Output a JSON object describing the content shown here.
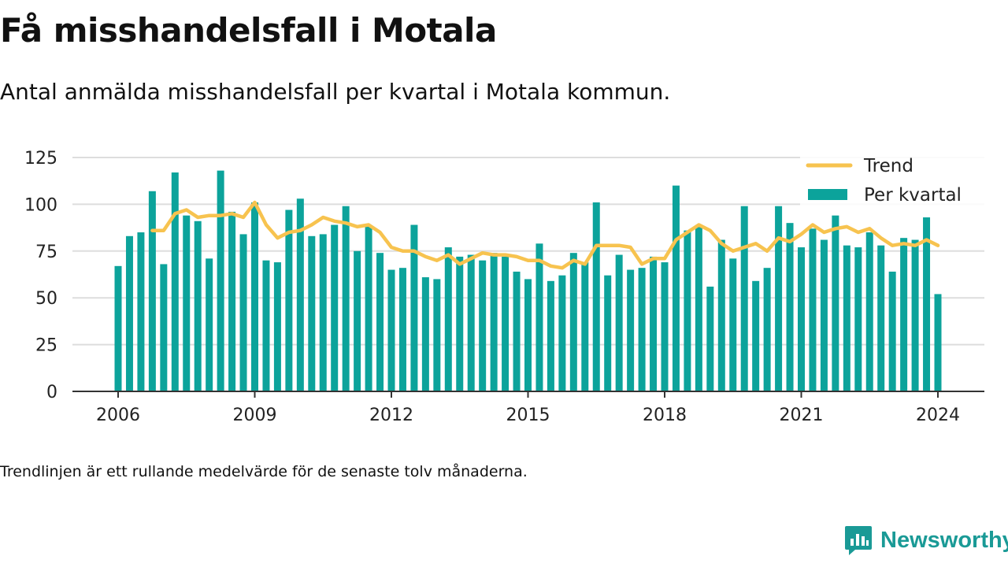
{
  "header": {
    "title": "Få misshandelsfall i Motala",
    "subtitle": "Antal anmälda misshandelsfall per kvartal i Motala kommun."
  },
  "footer": {
    "note": "Trendlinjen är ett rullande medelvärde för de senaste tolv månaderna.",
    "brand": "Newsworthy",
    "brand_icon": "newsworthy-logo-icon",
    "brand_color": "#1a9a96"
  },
  "colors": {
    "bar": "#0ca39b",
    "trend": "#f7c34f",
    "grid": "#dddddd",
    "axis": "#333333"
  },
  "chart_data": {
    "type": "bar",
    "title": "",
    "xlabel": "",
    "ylabel": "",
    "ylim": [
      0,
      125
    ],
    "yticks": [
      0,
      25,
      50,
      75,
      100,
      125
    ],
    "xticks": [
      2006,
      2009,
      2012,
      2015,
      2018,
      2021,
      2024
    ],
    "xlim": [
      2006.0,
      2024.0
    ],
    "grid": true,
    "legend_position": "top-right",
    "legend": [
      "Trend",
      "Per kvartal"
    ],
    "quarters_start": "2006-Q1",
    "series": [
      {
        "name": "Per kvartal",
        "type": "bar",
        "values": [
          67,
          83,
          85,
          107,
          68,
          117,
          94,
          91,
          71,
          118,
          96,
          84,
          101,
          70,
          69,
          97,
          103,
          83,
          84,
          89,
          99,
          75,
          88,
          74,
          65,
          66,
          89,
          61,
          60,
          77,
          72,
          73,
          70,
          74,
          72,
          64,
          60,
          79,
          59,
          62,
          74,
          69,
          101,
          62,
          73,
          65,
          66,
          72,
          69,
          110,
          86,
          88,
          56,
          81,
          71,
          99,
          59,
          66,
          99,
          90,
          77,
          87,
          81,
          94,
          78,
          77,
          85,
          78,
          64,
          82,
          81,
          93,
          52
        ]
      },
      {
        "name": "Trend",
        "type": "line",
        "values": [
          null,
          null,
          null,
          86,
          86,
          95,
          97,
          93,
          94,
          94,
          95,
          93,
          101,
          89,
          82,
          85,
          86,
          89,
          93,
          91,
          90,
          88,
          89,
          85,
          77,
          75,
          75,
          72,
          70,
          73,
          68,
          71,
          74,
          73,
          73,
          72,
          70,
          70,
          67,
          66,
          70,
          68,
          78,
          78,
          78,
          77,
          68,
          71,
          71,
          81,
          85,
          89,
          86,
          79,
          75,
          77,
          79,
          75,
          82,
          80,
          84,
          89,
          85,
          87,
          88,
          85,
          87,
          82,
          78,
          79,
          78,
          81,
          78
        ]
      }
    ]
  }
}
